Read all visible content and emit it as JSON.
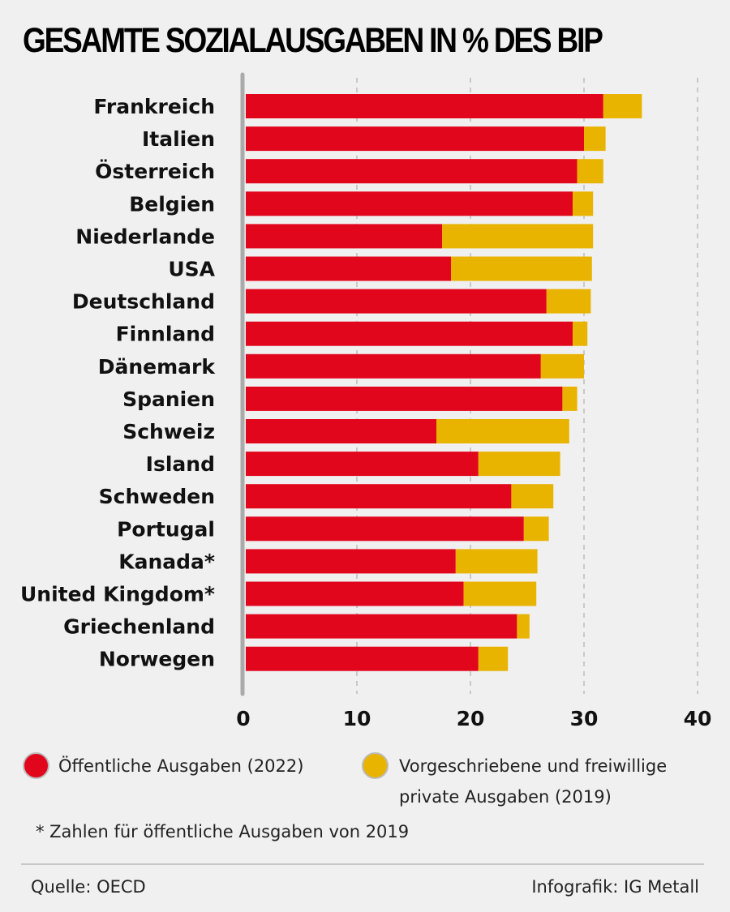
{
  "chart_data": {
    "type": "bar",
    "orientation": "horizontal",
    "stacked": true,
    "title": "GESAMTE SOZIALAUSGABEN IN % DES BIP",
    "xlabel": "",
    "ylabel": "",
    "xlim": [
      0,
      40
    ],
    "xticks": [
      0,
      10,
      20,
      30,
      40
    ],
    "grid": "vertical-dashed",
    "categories": [
      "Frankreich",
      "Italien",
      "Österreich",
      "Belgien",
      "Niederlande",
      "USA",
      "Deutschland",
      "Finnland",
      "Dänemark",
      "Spanien",
      "Schweiz",
      "Island",
      "Schweden",
      "Portugal",
      "Kanada*",
      "United Kingdom*",
      "Griechenland",
      "Norwegen"
    ],
    "series": [
      {
        "name": "Öffentliche Ausgaben (2022)",
        "color": "#e2061c",
        "values": [
          31.7,
          30.0,
          29.4,
          29.0,
          17.5,
          18.3,
          26.7,
          29.0,
          26.2,
          28.1,
          17.0,
          20.7,
          23.6,
          24.7,
          18.7,
          19.4,
          24.1,
          20.7
        ]
      },
      {
        "name": "Vorgeschriebene und freiwillige private Ausgaben (2019)",
        "color": "#e8b400",
        "values": [
          3.4,
          1.9,
          2.3,
          1.8,
          13.3,
          12.4,
          3.9,
          1.3,
          3.8,
          1.3,
          11.7,
          7.2,
          3.7,
          2.2,
          7.2,
          6.4,
          1.1,
          2.6
        ]
      }
    ],
    "legend_position": "bottom"
  },
  "legend": {
    "public_label": "Öffentliche Ausgaben (2022)",
    "private_label_line1": "Vorgeschriebene und freiwillige",
    "private_label_line2": "private Ausgaben (2019)"
  },
  "footnote": "* Zahlen für öffentliche Ausgaben von 2019",
  "source": "Quelle: OECD",
  "credit": "Infografik: IG Metall"
}
